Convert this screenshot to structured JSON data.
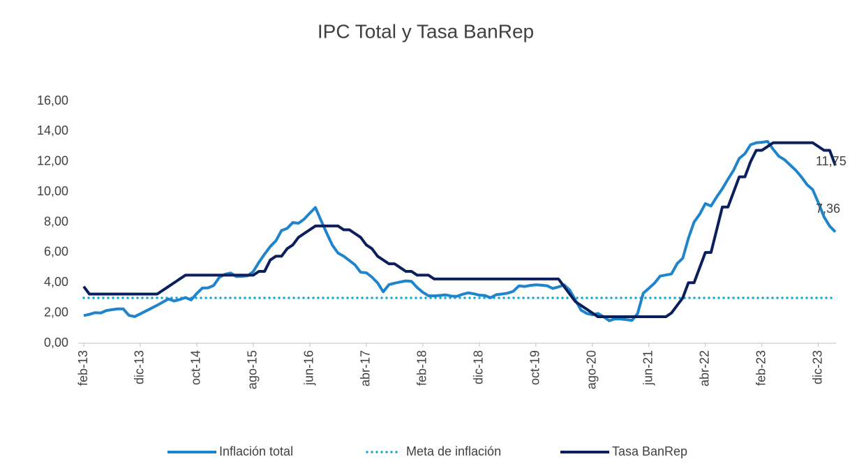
{
  "chart_data": {
    "type": "line",
    "title": "IPC Total y Tasa BanRep",
    "categories": [
      "feb-13",
      null,
      null,
      null,
      null,
      null,
      null,
      null,
      null,
      null,
      "dic-13",
      null,
      null,
      null,
      null,
      null,
      null,
      null,
      null,
      null,
      "oct-14",
      null,
      null,
      null,
      null,
      null,
      null,
      null,
      null,
      null,
      "ago-15",
      null,
      null,
      null,
      null,
      null,
      null,
      null,
      null,
      null,
      "jun-16",
      null,
      null,
      null,
      null,
      null,
      null,
      null,
      null,
      null,
      "abr-17",
      null,
      null,
      null,
      null,
      null,
      null,
      null,
      null,
      null,
      "feb-18",
      null,
      null,
      null,
      null,
      null,
      null,
      null,
      null,
      null,
      "dic-18",
      null,
      null,
      null,
      null,
      null,
      null,
      null,
      null,
      null,
      "oct-19",
      null,
      null,
      null,
      null,
      null,
      null,
      null,
      null,
      null,
      "ago-20",
      null,
      null,
      null,
      null,
      null,
      null,
      null,
      null,
      null,
      "jun-21",
      null,
      null,
      null,
      null,
      null,
      null,
      null,
      null,
      null,
      "abr-22",
      null,
      null,
      null,
      null,
      null,
      null,
      null,
      null,
      null,
      "feb-23",
      null,
      null,
      null,
      null,
      null,
      null,
      null,
      null,
      null,
      "dic-23",
      null,
      null,
      null
    ],
    "series": [
      {
        "name": "Inflación total",
        "color": "#1f84cc",
        "style": "solid",
        "values": [
          1.83,
          1.91,
          2.02,
          2.0,
          2.16,
          2.22,
          2.27,
          2.27,
          1.84,
          1.76,
          1.94,
          2.13,
          2.32,
          2.51,
          2.72,
          2.93,
          2.79,
          2.89,
          3.02,
          2.86,
          3.29,
          3.65,
          3.66,
          3.82,
          4.36,
          4.56,
          4.64,
          4.41,
          4.42,
          4.46,
          4.74,
          5.35,
          5.89,
          6.39,
          6.77,
          7.45,
          7.59,
          7.98,
          7.93,
          8.2,
          8.6,
          8.97,
          8.1,
          7.27,
          6.48,
          5.96,
          5.75,
          5.47,
          5.18,
          4.69,
          4.66,
          4.37,
          3.99,
          3.4,
          3.87,
          3.97,
          4.05,
          4.12,
          4.09,
          3.68,
          3.37,
          3.14,
          3.13,
          3.16,
          3.2,
          3.12,
          3.1,
          3.23,
          3.33,
          3.27,
          3.18,
          3.15,
          3.01,
          3.21,
          3.25,
          3.31,
          3.43,
          3.79,
          3.75,
          3.82,
          3.86,
          3.84,
          3.8,
          3.62,
          3.72,
          3.86,
          3.51,
          2.85,
          2.19,
          1.97,
          1.88,
          1.97,
          1.75,
          1.49,
          1.61,
          1.6,
          1.56,
          1.51,
          1.95,
          3.3,
          3.63,
          3.97,
          4.44,
          4.51,
          4.58,
          5.26,
          5.62,
          6.94,
          8.01,
          8.53,
          9.23,
          9.07,
          9.67,
          10.21,
          10.84,
          11.44,
          12.22,
          12.53,
          13.12,
          13.25,
          13.28,
          13.34,
          12.82,
          12.36,
          12.13,
          11.78,
          11.43,
          10.99,
          10.48,
          10.15,
          9.28,
          8.35,
          7.74,
          7.36
        ],
        "value_labels": [
          null,
          null,
          null,
          null,
          null,
          null,
          null,
          null,
          null,
          null,
          null,
          null,
          null,
          null,
          null,
          null,
          null,
          null,
          null,
          null,
          null,
          null,
          null,
          null,
          null,
          null,
          null,
          null,
          null,
          null,
          null,
          null,
          null,
          null,
          null,
          null,
          null,
          null,
          null,
          null,
          null,
          null,
          null,
          null,
          null,
          null,
          null,
          null,
          null,
          null,
          null,
          null,
          null,
          null,
          null,
          null,
          null,
          null,
          null,
          null,
          null,
          null,
          null,
          null,
          null,
          null,
          null,
          null,
          null,
          null,
          null,
          null,
          null,
          null,
          null,
          null,
          null,
          null,
          null,
          null,
          null,
          null,
          null,
          null,
          null,
          null,
          null,
          null,
          null,
          null,
          null,
          null,
          null,
          null,
          null,
          null,
          null,
          null,
          null,
          null,
          null,
          null,
          null,
          null,
          null,
          null,
          null,
          null,
          null,
          null,
          null,
          null,
          null,
          null,
          null,
          null,
          null,
          null,
          null,
          null,
          null,
          null,
          null,
          null,
          null,
          null,
          null,
          null,
          null,
          null,
          null,
          null,
          null,
          "7,36"
        ]
      },
      {
        "name": "Meta de inflación",
        "color": "#1aa6d9",
        "style": "dotted",
        "values": [
          3,
          3,
          3,
          3,
          3,
          3,
          3,
          3,
          3,
          3,
          3,
          3,
          3,
          3,
          3,
          3,
          3,
          3,
          3,
          3,
          3,
          3,
          3,
          3,
          3,
          3,
          3,
          3,
          3,
          3,
          3,
          3,
          3,
          3,
          3,
          3,
          3,
          3,
          3,
          3,
          3,
          3,
          3,
          3,
          3,
          3,
          3,
          3,
          3,
          3,
          3,
          3,
          3,
          3,
          3,
          3,
          3,
          3,
          3,
          3,
          3,
          3,
          3,
          3,
          3,
          3,
          3,
          3,
          3,
          3,
          3,
          3,
          3,
          3,
          3,
          3,
          3,
          3,
          3,
          3,
          3,
          3,
          3,
          3,
          3,
          3,
          3,
          3,
          3,
          3,
          3,
          3,
          3,
          3,
          3,
          3,
          3,
          3,
          3,
          3,
          3,
          3,
          3,
          3,
          3,
          3,
          3,
          3,
          3,
          3,
          3,
          3,
          3,
          3,
          3,
          3,
          3,
          3,
          3,
          3,
          3,
          3,
          3,
          3,
          3,
          3,
          3,
          3,
          3,
          3,
          3,
          3,
          3,
          3
        ]
      },
      {
        "name": "Tasa BanRep",
        "color": "#0b1f5c",
        "style": "solid",
        "values": [
          3.75,
          3.25,
          3.25,
          3.25,
          3.25,
          3.25,
          3.25,
          3.25,
          3.25,
          3.25,
          3.25,
          3.25,
          3.25,
          3.25,
          3.5,
          3.75,
          4.0,
          4.25,
          4.5,
          4.5,
          4.5,
          4.5,
          4.5,
          4.5,
          4.5,
          4.5,
          4.5,
          4.5,
          4.5,
          4.5,
          4.5,
          4.75,
          4.75,
          5.5,
          5.75,
          5.75,
          6.25,
          6.5,
          7.0,
          7.25,
          7.5,
          7.75,
          7.75,
          7.75,
          7.75,
          7.75,
          7.5,
          7.5,
          7.25,
          7.0,
          6.5,
          6.25,
          5.75,
          5.5,
          5.25,
          5.25,
          5.0,
          4.75,
          4.75,
          4.5,
          4.5,
          4.5,
          4.25,
          4.25,
          4.25,
          4.25,
          4.25,
          4.25,
          4.25,
          4.25,
          4.25,
          4.25,
          4.25,
          4.25,
          4.25,
          4.25,
          4.25,
          4.25,
          4.25,
          4.25,
          4.25,
          4.25,
          4.25,
          4.25,
          4.25,
          3.75,
          3.25,
          2.75,
          2.5,
          2.25,
          2.0,
          1.75,
          1.75,
          1.75,
          1.75,
          1.75,
          1.75,
          1.75,
          1.75,
          1.75,
          1.75,
          1.75,
          1.75,
          1.75,
          2.0,
          2.5,
          3.0,
          4.0,
          4.0,
          5.0,
          6.0,
          6.0,
          7.5,
          9.0,
          9.0,
          10.0,
          11.0,
          11.0,
          12.0,
          12.75,
          12.75,
          13.0,
          13.25,
          13.25,
          13.25,
          13.25,
          13.25,
          13.25,
          13.25,
          13.25,
          13.0,
          12.75,
          12.75,
          11.75
        ],
        "value_labels": [
          null,
          null,
          null,
          null,
          null,
          null,
          null,
          null,
          null,
          null,
          null,
          null,
          null,
          null,
          null,
          null,
          null,
          null,
          null,
          null,
          null,
          null,
          null,
          null,
          null,
          null,
          null,
          null,
          null,
          null,
          null,
          null,
          null,
          null,
          null,
          null,
          null,
          null,
          null,
          null,
          null,
          null,
          null,
          null,
          null,
          null,
          null,
          null,
          null,
          null,
          null,
          null,
          null,
          null,
          null,
          null,
          null,
          null,
          null,
          null,
          null,
          null,
          null,
          null,
          null,
          null,
          null,
          null,
          null,
          null,
          null,
          null,
          null,
          null,
          null,
          null,
          null,
          null,
          null,
          null,
          null,
          null,
          null,
          null,
          null,
          null,
          null,
          null,
          null,
          null,
          null,
          null,
          null,
          null,
          null,
          null,
          null,
          null,
          null,
          null,
          null,
          null,
          null,
          null,
          null,
          null,
          null,
          null,
          null,
          null,
          null,
          null,
          null,
          null,
          null,
          null,
          null,
          null,
          null,
          null,
          null,
          null,
          null,
          null,
          null,
          null,
          null,
          null,
          null,
          null,
          null,
          null,
          null,
          "11,75"
        ]
      }
    ],
    "ylim": [
      0,
      16
    ],
    "yticks": [
      {
        "value": 0,
        "label": "0,00"
      },
      {
        "value": 2,
        "label": "2,00"
      },
      {
        "value": 4,
        "label": "4,00"
      },
      {
        "value": 6,
        "label": "6,00"
      },
      {
        "value": 8,
        "label": "8,00"
      },
      {
        "value": 10,
        "label": "10,00"
      },
      {
        "value": 12,
        "label": "12,00"
      },
      {
        "value": 14,
        "label": "14,00"
      },
      {
        "value": 16,
        "label": "16,00"
      }
    ],
    "grid": false,
    "legend": "bottom"
  }
}
